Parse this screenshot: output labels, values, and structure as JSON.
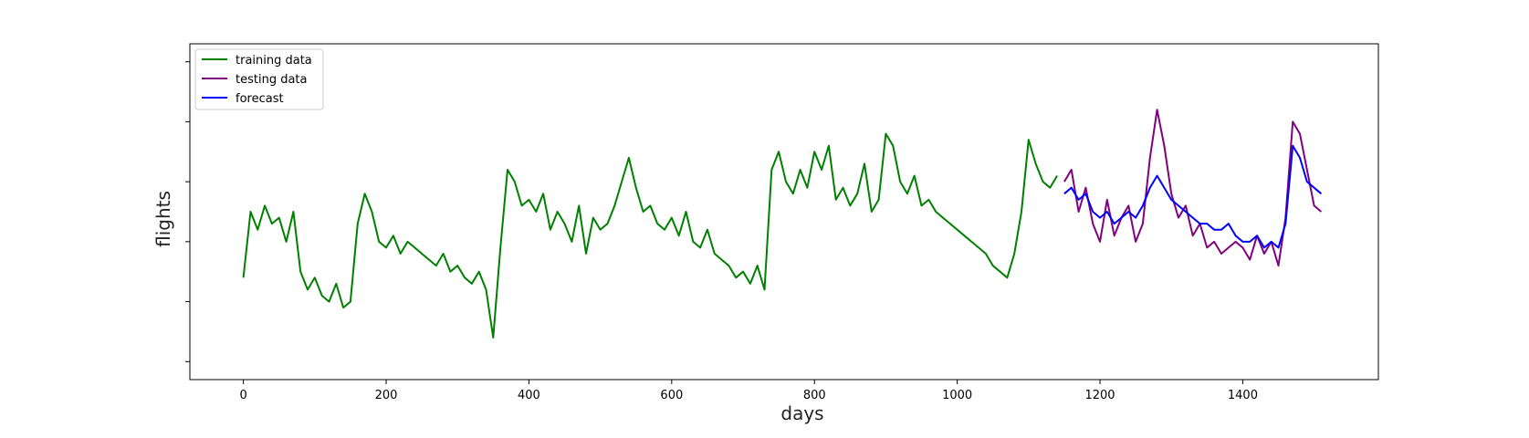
{
  "chart_data": {
    "type": "line",
    "xlabel": "days",
    "ylabel": "flights",
    "xlim": [
      -75,
      1590
    ],
    "ylim": [
      0.7,
      6.3
    ],
    "x_ticks": [
      0,
      200,
      400,
      600,
      800,
      1000,
      1200,
      1400
    ],
    "y_ticks": [
      1,
      2,
      3,
      4,
      5,
      6
    ],
    "y_tick_labels_visible": false,
    "grid": false,
    "legend_position": "top-left",
    "colors": {
      "training": "#008000",
      "testing": "#800080",
      "forecast": "#0000ff"
    },
    "series": [
      {
        "name": "training data",
        "color": "#008000",
        "x": [
          0,
          10,
          20,
          30,
          40,
          50,
          60,
          70,
          80,
          90,
          100,
          110,
          120,
          130,
          140,
          150,
          160,
          170,
          180,
          190,
          200,
          210,
          220,
          230,
          240,
          250,
          260,
          270,
          280,
          290,
          300,
          310,
          320,
          330,
          340,
          350,
          360,
          370,
          380,
          390,
          400,
          410,
          420,
          430,
          440,
          450,
          460,
          470,
          480,
          490,
          500,
          510,
          520,
          530,
          540,
          550,
          560,
          570,
          580,
          590,
          600,
          610,
          620,
          630,
          640,
          650,
          660,
          670,
          680,
          690,
          700,
          710,
          720,
          730,
          740,
          750,
          760,
          770,
          780,
          790,
          800,
          810,
          820,
          830,
          840,
          850,
          860,
          870,
          880,
          890,
          900,
          910,
          920,
          930,
          940,
          950,
          960,
          970,
          980,
          990,
          1000,
          1010,
          1020,
          1030,
          1040,
          1050,
          1060,
          1070,
          1080,
          1090,
          1100,
          1110,
          1120,
          1130,
          1140
        ],
        "values": [
          2.4,
          3.5,
          3.2,
          3.6,
          3.3,
          3.4,
          3.0,
          3.5,
          2.5,
          2.2,
          2.4,
          2.1,
          2.0,
          2.3,
          1.9,
          2.0,
          3.3,
          3.8,
          3.5,
          3.0,
          2.9,
          3.1,
          2.8,
          3.0,
          2.9,
          2.8,
          2.7,
          2.6,
          2.8,
          2.5,
          2.6,
          2.4,
          2.3,
          2.5,
          2.2,
          1.4,
          2.9,
          4.2,
          4.0,
          3.6,
          3.7,
          3.5,
          3.8,
          3.2,
          3.5,
          3.3,
          3.0,
          3.6,
          2.8,
          3.4,
          3.2,
          3.3,
          3.6,
          4.0,
          4.4,
          3.9,
          3.5,
          3.6,
          3.3,
          3.2,
          3.4,
          3.1,
          3.5,
          3.0,
          2.9,
          3.2,
          2.8,
          2.7,
          2.6,
          2.4,
          2.5,
          2.3,
          2.6,
          2.2,
          4.2,
          4.5,
          4.0,
          3.8,
          4.2,
          3.9,
          4.5,
          4.2,
          4.6,
          3.7,
          3.9,
          3.6,
          3.8,
          4.3,
          3.5,
          3.7,
          4.8,
          4.6,
          4.0,
          3.8,
          4.1,
          3.6,
          3.7,
          3.5,
          3.4,
          3.3,
          3.2,
          3.1,
          3.0,
          2.9,
          2.8,
          2.6,
          2.5,
          2.4,
          2.8,
          3.5,
          4.7,
          4.3,
          4.0,
          3.9,
          4.1
        ]
      },
      {
        "name": "testing data",
        "color": "#800080",
        "x": [
          1150,
          1160,
          1170,
          1180,
          1190,
          1200,
          1210,
          1220,
          1230,
          1240,
          1250,
          1260,
          1270,
          1280,
          1290,
          1300,
          1310,
          1320,
          1330,
          1340,
          1350,
          1360,
          1370,
          1380,
          1390,
          1400,
          1410,
          1420,
          1430,
          1440,
          1450,
          1460,
          1470,
          1480,
          1490,
          1500,
          1510
        ],
        "values": [
          4.0,
          4.2,
          3.5,
          3.9,
          3.3,
          3.0,
          3.7,
          3.1,
          3.4,
          3.6,
          3.0,
          3.3,
          4.4,
          5.2,
          4.6,
          3.8,
          3.4,
          3.6,
          3.1,
          3.3,
          2.9,
          3.0,
          2.8,
          2.9,
          3.0,
          2.9,
          2.7,
          3.1,
          2.8,
          3.0,
          2.6,
          3.4,
          5.0,
          4.8,
          4.2,
          3.6,
          3.5
        ]
      },
      {
        "name": "forecast",
        "color": "#0000ff",
        "x": [
          1150,
          1160,
          1170,
          1180,
          1190,
          1200,
          1210,
          1220,
          1230,
          1240,
          1250,
          1260,
          1270,
          1280,
          1290,
          1300,
          1310,
          1320,
          1330,
          1340,
          1350,
          1360,
          1370,
          1380,
          1390,
          1400,
          1410,
          1420,
          1430,
          1440,
          1450,
          1460,
          1470,
          1480,
          1490,
          1500,
          1510
        ],
        "values": [
          3.8,
          3.9,
          3.7,
          3.8,
          3.5,
          3.4,
          3.5,
          3.3,
          3.4,
          3.5,
          3.4,
          3.6,
          3.9,
          4.1,
          3.9,
          3.7,
          3.6,
          3.5,
          3.4,
          3.3,
          3.3,
          3.2,
          3.2,
          3.3,
          3.1,
          3.0,
          3.0,
          3.1,
          2.9,
          3.0,
          2.9,
          3.3,
          4.6,
          4.4,
          4.0,
          3.9,
          3.8
        ]
      }
    ]
  }
}
